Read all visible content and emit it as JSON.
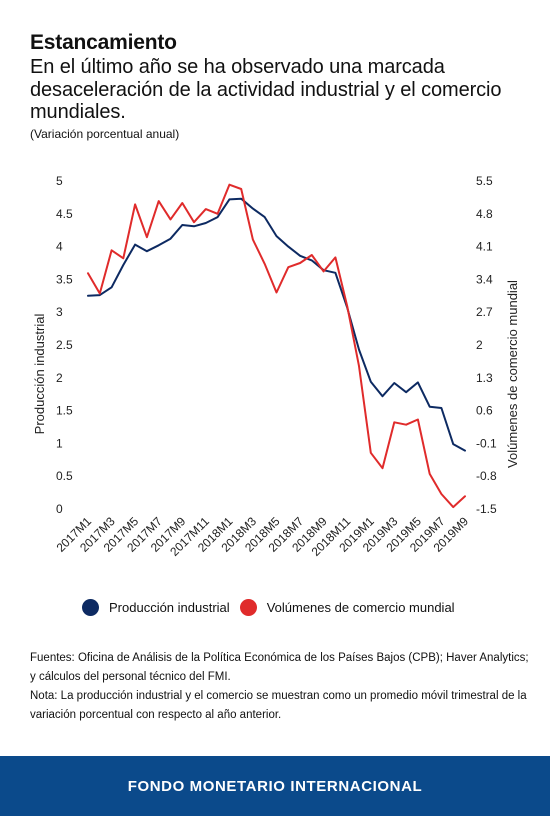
{
  "header": {
    "title": "Estancamiento",
    "subtitle": "En el último año se ha observado una marcada desaceleración de la actividad industrial y el comercio mundiales.",
    "units": "(Variación porcentual anual)"
  },
  "chart_data": {
    "type": "line",
    "categories": [
      "2017M1",
      "2017M2",
      "2017M3",
      "2017M4",
      "2017M5",
      "2017M6",
      "2017M7",
      "2017M8",
      "2017M9",
      "2017M10",
      "2017M11",
      "2017M12",
      "2018M1",
      "2018M2",
      "2018M3",
      "2018M4",
      "2018M5",
      "2018M6",
      "2018M7",
      "2018M8",
      "2018M9",
      "2018M10",
      "2018M11",
      "2018M12",
      "2019M1",
      "2019M2",
      "2019M3",
      "2019M4",
      "2019M5",
      "2019M6",
      "2019M7",
      "2019M8",
      "2019M9"
    ],
    "x_tick_labels": [
      "2017M1",
      "2017M3",
      "2017M5",
      "2017M7",
      "2017M9",
      "2017M11",
      "2018M1",
      "2018M3",
      "2018M5",
      "2018M7",
      "2018M9",
      "2018M11",
      "2019M1",
      "2019M3",
      "2019M5",
      "2019M7",
      "2019M9"
    ],
    "ylabel": "Producción industrial",
    "y2label": "Volúmenes de comercio mundial",
    "ylim": [
      0,
      5
    ],
    "y_ticks": [
      0,
      0.5,
      1,
      1.5,
      2,
      2.5,
      3,
      3.5,
      4,
      4.5,
      5
    ],
    "y_tick_labels": [
      "0",
      "0.5",
      "1",
      "1.5",
      "2",
      "2.5",
      "3",
      "3.5",
      "4",
      "4.5",
      "5"
    ],
    "y2lim": [
      -1.5,
      5.5
    ],
    "y2_ticks": [
      -1.5,
      -0.8,
      -0.1,
      0.6,
      1.3,
      2,
      2.7,
      3.4,
      4.1,
      4.8,
      5.5
    ],
    "y2_tick_labels": [
      "-1.5",
      "-0.8",
      "-0.1",
      "0.6",
      "1.3",
      "2",
      "2.7",
      "3.4",
      "4.1",
      "4.8",
      "5.5"
    ],
    "grid": false,
    "legend_position": "bottom",
    "series": [
      {
        "name": "Producción industrial",
        "axis": "left",
        "color": "#0d2a62",
        "values": [
          3.25,
          3.26,
          3.38,
          3.72,
          4.03,
          3.93,
          4.02,
          4.12,
          4.33,
          4.31,
          4.36,
          4.45,
          4.72,
          4.73,
          4.58,
          4.45,
          4.16,
          4.0,
          3.86,
          3.79,
          3.64,
          3.6,
          3.07,
          2.43,
          1.94,
          1.72,
          1.92,
          1.78,
          1.93,
          1.56,
          1.54,
          0.99,
          0.89
        ]
      },
      {
        "name": "Volúmenes de comercio mundial",
        "axis": "right",
        "color": "#e02b2b",
        "values": [
          3.53,
          3.1,
          4.02,
          3.85,
          5.0,
          4.3,
          5.07,
          4.68,
          5.03,
          4.62,
          4.9,
          4.8,
          5.42,
          5.33,
          4.25,
          3.73,
          3.12,
          3.66,
          3.75,
          3.92,
          3.57,
          3.87,
          2.83,
          1.55,
          -0.3,
          -0.63,
          0.35,
          0.3,
          0.41,
          -0.75,
          -1.18,
          -1.46,
          -1.23
        ]
      }
    ]
  },
  "legend": {
    "items": [
      {
        "label": "Producción industrial",
        "color": "#0d2a62"
      },
      {
        "label": "Volúmenes de comercio mundial",
        "color": "#e02b2b"
      }
    ]
  },
  "notes": {
    "sources": "Fuentes: Oficina de Análisis de la Política Económica de los Países Bajos (CPB); Haver Analytics; y cálculos del personal técnico del FMI.",
    "note": "Nota: La producción industrial y el comercio se muestran como un promedio móvil trimestral de la variación porcentual con respecto al año anterior."
  },
  "footer": {
    "label": "FONDO MONETARIO INTERNACIONAL"
  }
}
